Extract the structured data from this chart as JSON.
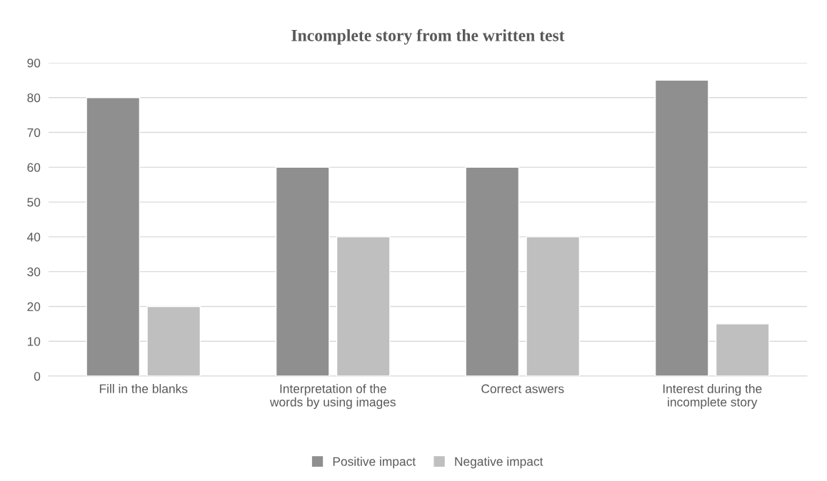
{
  "chart_data": {
    "type": "bar",
    "title": "Incomplete story from the written test",
    "categories": [
      "Fill in the blanks",
      "Interpretation of the\nwords by using images",
      "Correct aswers",
      "Interest during the\nincomplete story"
    ],
    "series": [
      {
        "name": "Positive impact",
        "color": "#8f8f8f",
        "values": [
          80,
          60,
          60,
          85
        ]
      },
      {
        "name": "Negative impact",
        "color": "#bfbfbf",
        "values": [
          20,
          40,
          40,
          15
        ]
      }
    ],
    "ylim": [
      0,
      90
    ],
    "yticks": [
      0,
      10,
      20,
      30,
      40,
      50,
      60,
      70,
      80,
      90
    ],
    "grid": "y",
    "legend": "bottom"
  }
}
